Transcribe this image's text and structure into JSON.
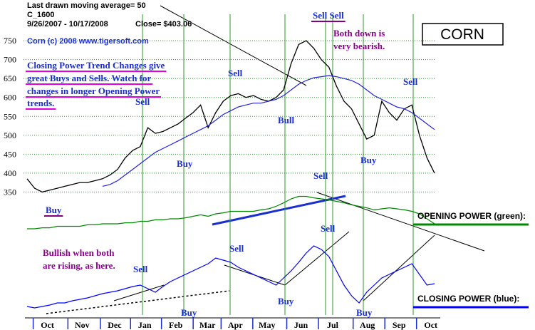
{
  "chart_data": [
    {
      "type": "line",
      "title": "CORN",
      "header": [
        "Last drawn moving average= 50",
        "C_1600",
        "9/26/2007 - 10/17/2008",
        "Close= $403.06",
        "Corn (c) 2008  www.tigersoft.com"
      ],
      "annotations": [
        "Sell Sell",
        "Both down is",
        "very bearish.",
        "Closing Power Trend Changes give",
        "great Buys and Sells.  Watch for",
        "changes in longer Opening Power",
        "trends.",
        "Sell",
        "Sell",
        "Bull",
        "Sell",
        "Buy",
        "Buy",
        "Sell",
        "Buy",
        "Sell",
        "Sell",
        "Bullish when both",
        "are rising, as here.",
        "Sell",
        "Buy",
        "Buy",
        "Buy"
      ],
      "x": [
        0,
        1,
        2,
        3,
        4,
        5,
        6,
        7,
        8,
        9,
        10,
        11,
        12,
        13,
        14,
        15,
        16,
        17,
        18,
        19,
        20,
        21,
        22,
        23,
        24,
        25,
        26,
        27,
        28,
        29,
        30,
        31,
        32,
        33,
        34,
        35,
        36,
        37,
        38,
        39,
        40,
        41,
        42,
        43,
        44,
        45,
        46,
        47,
        48,
        49,
        50,
        51,
        52,
        53,
        54
      ],
      "xlim": [
        0,
        54
      ],
      "xticks": [
        {
          "value": 2.7,
          "label": "Oct"
        },
        {
          "value": 7.3,
          "label": "Nov"
        },
        {
          "value": 11.6,
          "label": "Dec"
        },
        {
          "value": 15.6,
          "label": "Jan"
        },
        {
          "value": 19.7,
          "label": "Feb"
        },
        {
          "value": 23.9,
          "label": "Mar"
        },
        {
          "value": 27.6,
          "label": "Apr"
        },
        {
          "value": 31.8,
          "label": "May"
        },
        {
          "value": 36.3,
          "label": "Jun"
        },
        {
          "value": 40.5,
          "label": "Jul"
        },
        {
          "value": 45.1,
          "label": "Aug"
        },
        {
          "value": 49.3,
          "label": "Sep"
        },
        {
          "value": 53.5,
          "label": "Oct"
        }
      ],
      "ylim": [
        330,
        820
      ],
      "yticks": [
        350,
        400,
        450,
        500,
        550,
        600,
        650,
        700,
        750
      ],
      "grid": true,
      "series": [
        {
          "color": "#000000",
          "values": [
            385,
            360,
            350,
            355,
            360,
            365,
            370,
            375,
            375,
            380,
            385,
            395,
            410,
            440,
            460,
            470,
            520,
            505,
            510,
            520,
            530,
            545,
            560,
            580,
            520,
            560,
            590,
            605,
            610,
            600,
            605,
            595,
            590,
            600,
            620,
            690,
            740,
            750,
            730,
            700,
            680,
            630,
            590,
            570,
            530,
            490,
            500,
            590,
            560,
            540,
            570,
            580,
            500,
            440,
            400
          ]
        },
        {
          "color": "#2222dd",
          "values": [
            null,
            null,
            null,
            null,
            null,
            null,
            null,
            null,
            null,
            null,
            365,
            370,
            380,
            395,
            410,
            425,
            440,
            455,
            465,
            475,
            485,
            495,
            505,
            515,
            525,
            540,
            555,
            565,
            575,
            580,
            585,
            585,
            590,
            595,
            605,
            620,
            635,
            645,
            652,
            655,
            658,
            655,
            650,
            645,
            635,
            620,
            605,
            595,
            585,
            575,
            570,
            560,
            545,
            530,
            515
          ]
        }
      ]
    },
    {
      "type": "line",
      "ylim": [
        0,
        100
      ],
      "series": [
        {
          "name": "OPENING POWER (green):",
          "color": "#008800",
          "values": [
            20,
            20,
            22,
            22,
            25,
            25,
            25,
            25,
            28,
            28,
            30,
            30,
            30,
            32,
            32,
            35,
            35,
            38,
            38,
            40,
            40,
            42,
            45,
            48,
            45,
            50,
            52,
            55,
            55,
            55,
            55,
            58,
            60,
            65,
            72,
            80,
            85,
            85,
            82,
            80,
            78,
            75,
            72,
            68,
            65,
            62,
            58,
            60,
            62,
            60,
            58,
            55,
            50,
            40,
            30
          ]
        }
      ]
    },
    {
      "type": "line",
      "ylim": [
        0,
        100
      ],
      "series": [
        {
          "name": "CLOSING POWER (blue):",
          "color": "#0000ff",
          "values": [
            10,
            8,
            10,
            12,
            15,
            15,
            18,
            20,
            22,
            25,
            28,
            30,
            32,
            35,
            38,
            40,
            35,
            30,
            38,
            45,
            50,
            55,
            60,
            65,
            70,
            78,
            75,
            72,
            65,
            60,
            55,
            50,
            45,
            40,
            50,
            60,
            72,
            85,
            95,
            90,
            80,
            60,
            40,
            25,
            15,
            30,
            40,
            50,
            55,
            60,
            65,
            70,
            55,
            40,
            42
          ]
        }
      ]
    }
  ]
}
